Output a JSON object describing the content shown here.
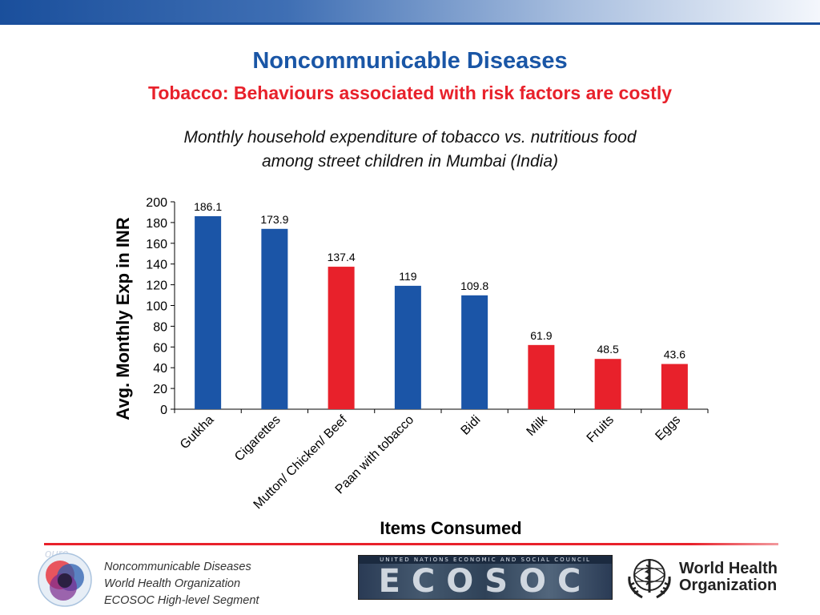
{
  "slide": {
    "title": "Noncommunicable Diseases",
    "subtitle": "Tobacco: Behaviours associated with risk factors are costly",
    "caption_line1": "Monthly household expenditure of tobacco vs. nutritious food",
    "caption_line2": "among street children in Mumbai (India)"
  },
  "colors": {
    "accent_blue": "#1b55a7",
    "accent_red": "#e8212b",
    "title_blue": "#1a56a6"
  },
  "chart_data": {
    "type": "bar",
    "categories": [
      "Gutkha",
      "Cigarettes",
      "Mutton/ Chicken/ Beef",
      "Paan with tobacco",
      "Bidi",
      "Milk",
      "Fruits",
      "Eggs"
    ],
    "values": [
      186.1,
      173.9,
      137.4,
      119,
      109.8,
      61.9,
      48.5,
      43.6
    ],
    "data_labels": [
      "186.1",
      "173.9",
      "137.4",
      "119",
      "109.8",
      "61.9",
      "48.5",
      "43.6"
    ],
    "bar_colors": [
      "#1b55a7",
      "#1b55a7",
      "#e8212b",
      "#1b55a7",
      "#1b55a7",
      "#e8212b",
      "#e8212b",
      "#e8212b"
    ],
    "xlabel": "Items Consumed",
    "ylabel": "Avg. Monthly Exp in INR",
    "ylim": [
      0,
      200
    ],
    "yticks": [
      0,
      20,
      40,
      60,
      80,
      100,
      120,
      140,
      160,
      180,
      200
    ],
    "grid": false,
    "legend": "none"
  },
  "footer": {
    "line1": "Noncommunicable Diseases",
    "line2": "World Health Organization",
    "line3": "ECOSOC High-level Segment",
    "ghost_text": "ourc",
    "ecosoc_banner": "UNITED NATIONS ECONOMIC AND SOCIAL COUNCIL",
    "ecosoc_word": "ECOSOC",
    "who_line1": "World Health",
    "who_line2": "Organization"
  },
  "icons": {
    "footer_logo": "ncd-circles-logo-icon",
    "who_emblem": "who-emblem-icon"
  }
}
